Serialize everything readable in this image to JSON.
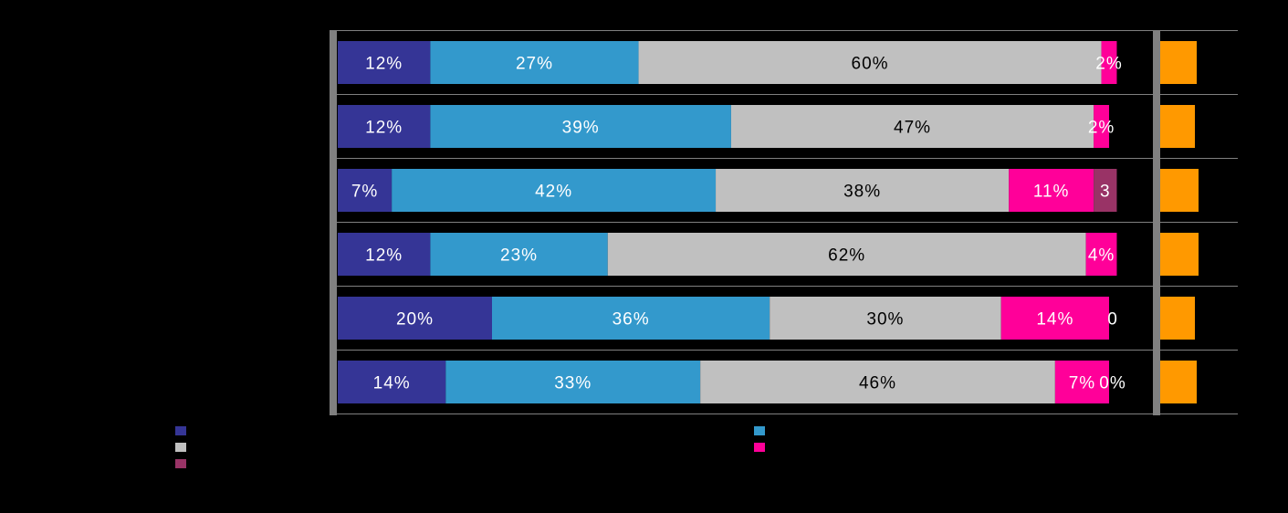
{
  "chart_data": {
    "type": "bar",
    "orientation": "horizontal",
    "stacked": true,
    "categories": [
      "",
      "",
      "",
      "",
      "",
      ""
    ],
    "series": [
      {
        "color": "#353596",
        "values": [
          12,
          12,
          7,
          12,
          20,
          14
        ]
      },
      {
        "color": "#3399CC",
        "values": [
          27,
          39,
          42,
          23,
          36,
          33
        ]
      },
      {
        "color": "#C0C0C0",
        "values": [
          60,
          47,
          38,
          62,
          30,
          46
        ]
      },
      {
        "color": "#FF0099",
        "values": [
          2,
          2,
          11,
          4,
          14,
          7
        ]
      },
      {
        "color": "#993366",
        "values": [
          0,
          0,
          3,
          0,
          0,
          0
        ]
      }
    ],
    "labels": [
      [
        "12%",
        "27%",
        "60%",
        "2%",
        ""
      ],
      [
        "12%",
        "39%",
        "47%",
        "2%",
        ""
      ],
      [
        "7%",
        "42%",
        "38%",
        "11%",
        "3"
      ],
      [
        "12%",
        "23%",
        "62%",
        "4%",
        ""
      ],
      [
        "20%",
        "36%",
        "30%",
        "14%",
        "0"
      ],
      [
        "14%",
        "33%",
        "46%",
        "7%",
        "0%"
      ]
    ],
    "side_bar": {
      "color": "#FF9900",
      "values": [
        1,
        0.95,
        1.05,
        1.05,
        0.95,
        1.0
      ]
    },
    "legend": [
      {
        "color": "#353596",
        "label": ""
      },
      {
        "color": "#3399CC",
        "label": ""
      },
      {
        "color": "#C0C0C0",
        "label": ""
      },
      {
        "color": "#FF0099",
        "label": ""
      },
      {
        "color": "#993366",
        "label": ""
      }
    ],
    "legend_position": "bottom",
    "xlim": [
      0,
      100
    ]
  }
}
